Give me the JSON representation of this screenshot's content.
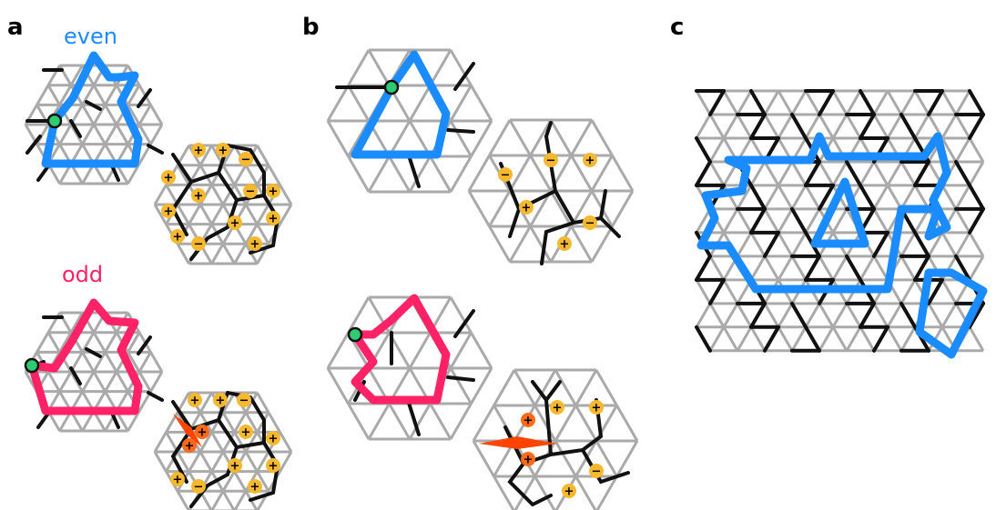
{
  "panels": [
    {
      "letter": "a",
      "labels": {
        "top": "even",
        "bottom": "odd"
      }
    },
    {
      "letter": "b"
    },
    {
      "letter": "c"
    }
  ],
  "charges": {
    "plus": "+",
    "minus": "−"
  },
  "colors": {
    "lattice": "#aaaaaa",
    "bonds": "#111111",
    "even_loop": "#1a8cff",
    "odd_loop": "#ff2266",
    "marker_fill": "#2ecc71",
    "charge_fill": "#f5b82e",
    "defect": "#ff4400",
    "defect_charge_fill": "#ff6a1a"
  },
  "icons": [
    "green-start-marker",
    "plus-charge",
    "minus-charge",
    "defect-wedge"
  ]
}
